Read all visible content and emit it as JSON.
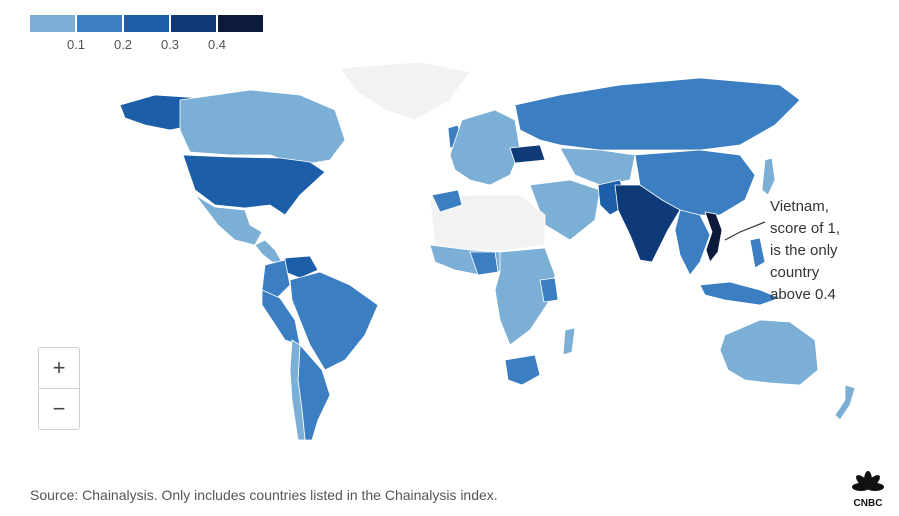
{
  "legend": {
    "colors": [
      "#7bafd6",
      "#3b7ec2",
      "#1d5ea8",
      "#0f3a78",
      "#0b1a3d"
    ],
    "ticks": [
      "0.1",
      "0.2",
      "0.3",
      "0.4"
    ]
  },
  "annotation": {
    "lines": [
      "Vietnam,",
      "score of 1,",
      "is the only",
      "country",
      "above 0.4"
    ]
  },
  "zoom": {
    "in_label": "+",
    "out_label": "−"
  },
  "source": "Source: Chainalysis. Only includes countries listed in the Chainalysis index.",
  "logo": {
    "text": "CNBC",
    "icon": "peacock-icon"
  },
  "map_colors": {
    "no_data": "#f2f2f2",
    "tier1": "#7bafd6",
    "tier2": "#3b7ec2",
    "tier3": "#1d5ea8",
    "tier4": "#0f3a78",
    "top": "#0b1a3d"
  }
}
